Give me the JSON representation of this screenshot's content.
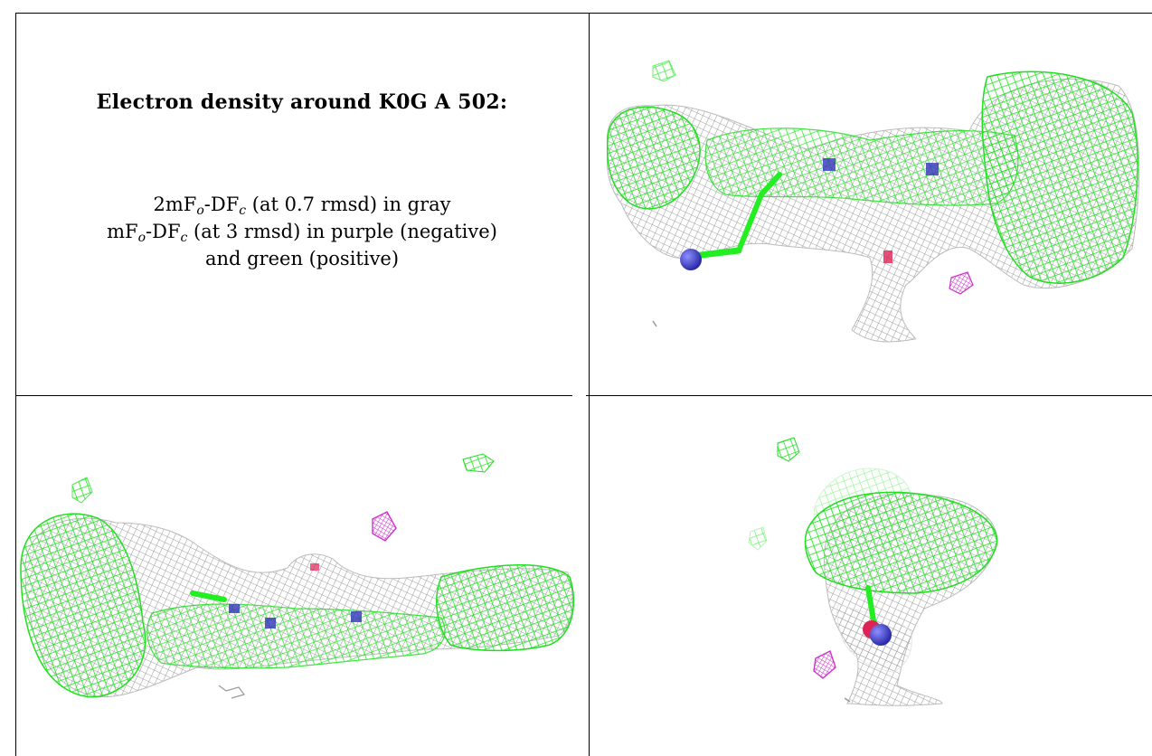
{
  "title": "Electron density around K0G A 502:",
  "legend": {
    "line1": {
      "a": "2mF",
      "a_sub": "o",
      "b": "-DF",
      "b_sub": "c",
      "c": " (at 0.7 rmsd) in gray"
    },
    "line2": {
      "a": "mF",
      "a_sub": "o",
      "b": "-DF",
      "b_sub": "c",
      "c": " (at 3 rmsd) in purple (negative)"
    },
    "line3": "and green (positive)"
  },
  "colors": {
    "gray_mesh": "#9a9a9a",
    "positive_green": "#22ee22",
    "negative_purple": "#cc33cc",
    "nitrogen_blue": "#3333bb",
    "oxygen_red": "#dd2255"
  },
  "panels": [
    {
      "view": "top-right",
      "icon": "electron-density-view-1"
    },
    {
      "view": "bottom-left",
      "icon": "electron-density-view-2"
    },
    {
      "view": "bottom-right",
      "icon": "electron-density-view-3"
    }
  ]
}
